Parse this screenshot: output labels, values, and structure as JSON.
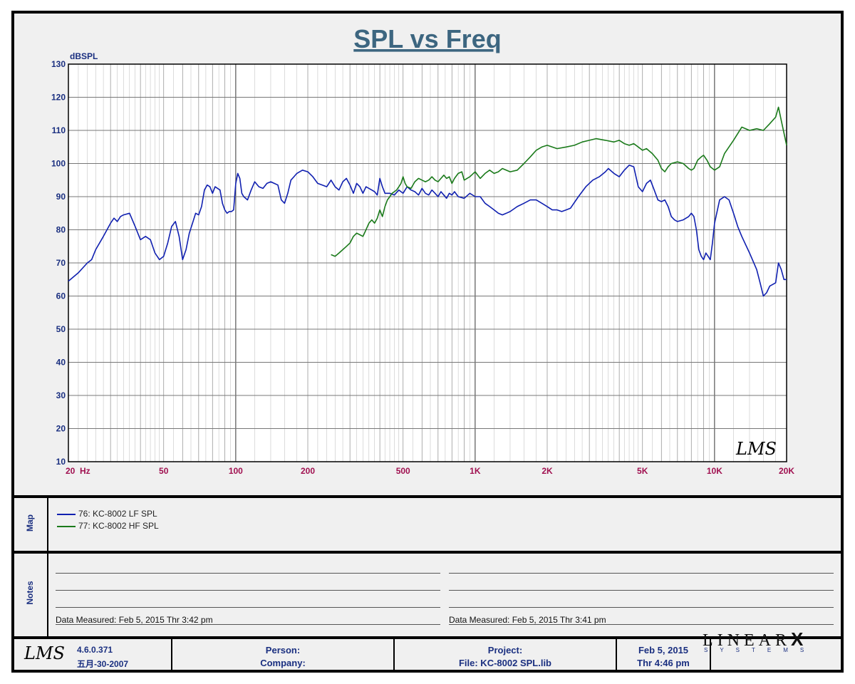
{
  "chart_data": {
    "type": "line",
    "title": "SPL vs Freq",
    "ylabel": "dBSPL",
    "xscale": "log",
    "xlim": [
      20,
      20000
    ],
    "ylim": [
      10,
      130
    ],
    "yticks": [
      10,
      20,
      30,
      40,
      50,
      60,
      70,
      80,
      90,
      100,
      110,
      120,
      130
    ],
    "xtick_labels": [
      {
        "x": 20,
        "label": "20  Hz"
      },
      {
        "x": 50,
        "label": "50"
      },
      {
        "x": 100,
        "label": "100"
      },
      {
        "x": 200,
        "label": "200"
      },
      {
        "x": 500,
        "label": "500"
      },
      {
        "x": 1000,
        "label": "1K"
      },
      {
        "x": 2000,
        "label": "2K"
      },
      {
        "x": 5000,
        "label": "5K"
      },
      {
        "x": 10000,
        "label": "10K"
      },
      {
        "x": 20000,
        "label": "20K"
      }
    ],
    "grid": true,
    "watermark": "LMS",
    "series": [
      {
        "name": "76: KC-8002  LF  SPL",
        "color": "#1020b0",
        "points": [
          [
            20,
            64.5
          ],
          [
            22,
            67
          ],
          [
            24,
            70
          ],
          [
            25,
            71
          ],
          [
            26,
            74
          ],
          [
            28,
            78
          ],
          [
            30,
            82
          ],
          [
            31,
            83.5
          ],
          [
            32,
            82.5
          ],
          [
            33,
            84
          ],
          [
            34,
            84.5
          ],
          [
            36,
            85
          ],
          [
            38,
            81
          ],
          [
            40,
            77
          ],
          [
            42,
            78
          ],
          [
            44,
            77
          ],
          [
            46,
            73
          ],
          [
            48,
            71
          ],
          [
            50,
            72
          ],
          [
            52,
            76
          ],
          [
            54,
            81
          ],
          [
            56,
            82.5
          ],
          [
            58,
            78
          ],
          [
            60,
            71
          ],
          [
            62,
            74
          ],
          [
            64,
            79
          ],
          [
            66,
            82
          ],
          [
            68,
            85
          ],
          [
            70,
            84.5
          ],
          [
            72,
            87
          ],
          [
            74,
            92
          ],
          [
            76,
            93.5
          ],
          [
            78,
            93
          ],
          [
            80,
            91
          ],
          [
            82,
            93
          ],
          [
            84,
            92.5
          ],
          [
            86,
            92
          ],
          [
            88,
            88
          ],
          [
            90,
            86
          ],
          [
            92,
            85
          ],
          [
            94,
            85.5
          ],
          [
            96,
            85.5
          ],
          [
            98,
            86
          ],
          [
            100,
            94
          ],
          [
            102,
            97
          ],
          [
            104,
            95.5
          ],
          [
            106,
            91
          ],
          [
            108,
            90
          ],
          [
            112,
            89
          ],
          [
            116,
            92
          ],
          [
            120,
            94.5
          ],
          [
            125,
            93
          ],
          [
            130,
            92.5
          ],
          [
            135,
            94
          ],
          [
            140,
            94.5
          ],
          [
            150,
            93.5
          ],
          [
            155,
            89
          ],
          [
            160,
            88
          ],
          [
            165,
            91
          ],
          [
            170,
            95
          ],
          [
            175,
            96
          ],
          [
            180,
            97
          ],
          [
            190,
            98
          ],
          [
            200,
            97.5
          ],
          [
            210,
            96
          ],
          [
            220,
            94
          ],
          [
            230,
            93.5
          ],
          [
            240,
            93
          ],
          [
            250,
            95
          ],
          [
            260,
            93
          ],
          [
            270,
            92
          ],
          [
            280,
            94.5
          ],
          [
            290,
            95.5
          ],
          [
            300,
            93.5
          ],
          [
            310,
            91
          ],
          [
            320,
            94
          ],
          [
            330,
            93
          ],
          [
            340,
            91
          ],
          [
            350,
            93
          ],
          [
            360,
            92.5
          ],
          [
            370,
            92
          ],
          [
            380,
            91.5
          ],
          [
            390,
            90.5
          ],
          [
            400,
            95.5
          ],
          [
            410,
            93
          ],
          [
            420,
            91
          ],
          [
            440,
            91
          ],
          [
            460,
            90.5
          ],
          [
            480,
            92
          ],
          [
            500,
            91
          ],
          [
            520,
            93
          ],
          [
            540,
            92
          ],
          [
            560,
            91.5
          ],
          [
            580,
            90.5
          ],
          [
            600,
            92.5
          ],
          [
            620,
            91
          ],
          [
            640,
            90.5
          ],
          [
            660,
            92
          ],
          [
            680,
            91
          ],
          [
            700,
            90
          ],
          [
            720,
            91.5
          ],
          [
            740,
            90.5
          ],
          [
            760,
            89.5
          ],
          [
            780,
            91
          ],
          [
            800,
            90.5
          ],
          [
            820,
            91.5
          ],
          [
            850,
            90
          ],
          [
            900,
            89.5
          ],
          [
            950,
            91
          ],
          [
            1000,
            90
          ],
          [
            1050,
            90
          ],
          [
            1100,
            88
          ],
          [
            1150,
            87
          ],
          [
            1200,
            86
          ],
          [
            1250,
            85
          ],
          [
            1300,
            84.5
          ],
          [
            1350,
            85
          ],
          [
            1400,
            85.5
          ],
          [
            1500,
            87
          ],
          [
            1600,
            88
          ],
          [
            1700,
            89
          ],
          [
            1800,
            89
          ],
          [
            1900,
            88
          ],
          [
            2000,
            87
          ],
          [
            2100,
            86
          ],
          [
            2200,
            86
          ],
          [
            2300,
            85.5
          ],
          [
            2400,
            86
          ],
          [
            2500,
            86.5
          ],
          [
            2700,
            90
          ],
          [
            2900,
            93
          ],
          [
            3100,
            95
          ],
          [
            3300,
            96
          ],
          [
            3500,
            97.5
          ],
          [
            3600,
            98.5
          ],
          [
            3800,
            97
          ],
          [
            4000,
            96
          ],
          [
            4200,
            98
          ],
          [
            4400,
            99.5
          ],
          [
            4600,
            99
          ],
          [
            4800,
            93
          ],
          [
            5000,
            91.5
          ],
          [
            5200,
            94
          ],
          [
            5400,
            95
          ],
          [
            5600,
            92
          ],
          [
            5800,
            89
          ],
          [
            6000,
            88.5
          ],
          [
            6200,
            89
          ],
          [
            6400,
            87
          ],
          [
            6600,
            84
          ],
          [
            6800,
            83
          ],
          [
            7000,
            82.5
          ],
          [
            7400,
            83
          ],
          [
            7800,
            84
          ],
          [
            8000,
            85
          ],
          [
            8200,
            84
          ],
          [
            8400,
            80
          ],
          [
            8600,
            74
          ],
          [
            8800,
            72
          ],
          [
            9000,
            71
          ],
          [
            9200,
            73
          ],
          [
            9400,
            72
          ],
          [
            9600,
            71
          ],
          [
            9800,
            76
          ],
          [
            10000,
            82
          ],
          [
            10500,
            89
          ],
          [
            11000,
            90
          ],
          [
            11500,
            89
          ],
          [
            12000,
            85
          ],
          [
            12500,
            81
          ],
          [
            13000,
            78
          ],
          [
            14000,
            73
          ],
          [
            15000,
            68
          ],
          [
            15500,
            64
          ],
          [
            16000,
            60
          ],
          [
            16500,
            61
          ],
          [
            17000,
            63
          ],
          [
            18000,
            64
          ],
          [
            18500,
            70
          ],
          [
            19000,
            68
          ],
          [
            19500,
            65
          ],
          [
            20000,
            65
          ]
        ]
      },
      {
        "name": "77: KC-8002  HF  SPL",
        "color": "#1a7a1a",
        "points": [
          [
            250,
            72.5
          ],
          [
            260,
            72
          ],
          [
            270,
            73
          ],
          [
            280,
            74
          ],
          [
            290,
            75
          ],
          [
            300,
            76
          ],
          [
            310,
            78
          ],
          [
            320,
            79
          ],
          [
            330,
            78.5
          ],
          [
            340,
            78
          ],
          [
            350,
            80
          ],
          [
            360,
            82
          ],
          [
            370,
            83
          ],
          [
            380,
            82
          ],
          [
            390,
            83.5
          ],
          [
            400,
            86
          ],
          [
            410,
            84
          ],
          [
            420,
            87
          ],
          [
            430,
            89
          ],
          [
            440,
            90
          ],
          [
            450,
            91
          ],
          [
            460,
            91.5
          ],
          [
            470,
            92
          ],
          [
            480,
            93
          ],
          [
            490,
            94
          ],
          [
            500,
            96
          ],
          [
            510,
            94
          ],
          [
            520,
            93
          ],
          [
            540,
            92.5
          ],
          [
            560,
            94.5
          ],
          [
            580,
            95.5
          ],
          [
            600,
            95
          ],
          [
            620,
            94.5
          ],
          [
            640,
            95
          ],
          [
            660,
            96
          ],
          [
            680,
            95
          ],
          [
            700,
            94.5
          ],
          [
            720,
            95.5
          ],
          [
            740,
            96.5
          ],
          [
            760,
            95.5
          ],
          [
            780,
            96
          ],
          [
            800,
            94
          ],
          [
            820,
            95.5
          ],
          [
            850,
            97
          ],
          [
            880,
            97.5
          ],
          [
            900,
            95
          ],
          [
            950,
            96
          ],
          [
            1000,
            97.5
          ],
          [
            1050,
            95.5
          ],
          [
            1100,
            97
          ],
          [
            1150,
            98
          ],
          [
            1200,
            97
          ],
          [
            1250,
            97.5
          ],
          [
            1300,
            98.5
          ],
          [
            1400,
            97.5
          ],
          [
            1500,
            98
          ],
          [
            1600,
            100
          ],
          [
            1700,
            102
          ],
          [
            1800,
            104
          ],
          [
            1900,
            105
          ],
          [
            2000,
            105.5
          ],
          [
            2200,
            104.5
          ],
          [
            2400,
            105
          ],
          [
            2600,
            105.5
          ],
          [
            2800,
            106.5
          ],
          [
            3000,
            107
          ],
          [
            3200,
            107.5
          ],
          [
            3500,
            107
          ],
          [
            3800,
            106.5
          ],
          [
            4000,
            107
          ],
          [
            4200,
            106
          ],
          [
            4400,
            105.5
          ],
          [
            4600,
            106
          ],
          [
            4800,
            105
          ],
          [
            5000,
            104
          ],
          [
            5200,
            104.5
          ],
          [
            5500,
            103
          ],
          [
            5800,
            101
          ],
          [
            6000,
            98.5
          ],
          [
            6200,
            97.5
          ],
          [
            6400,
            99
          ],
          [
            6600,
            100
          ],
          [
            7000,
            100.5
          ],
          [
            7400,
            100
          ],
          [
            7800,
            98.5
          ],
          [
            8000,
            98
          ],
          [
            8200,
            98.5
          ],
          [
            8500,
            101
          ],
          [
            8800,
            102
          ],
          [
            9000,
            102.5
          ],
          [
            9300,
            101
          ],
          [
            9600,
            99
          ],
          [
            10000,
            98
          ],
          [
            10500,
            99
          ],
          [
            11000,
            103
          ],
          [
            12000,
            107
          ],
          [
            13000,
            111
          ],
          [
            14000,
            110
          ],
          [
            15000,
            110.5
          ],
          [
            16000,
            110
          ],
          [
            17000,
            112
          ],
          [
            18000,
            114
          ],
          [
            18500,
            117
          ],
          [
            19000,
            113
          ],
          [
            20000,
            105.5
          ]
        ]
      }
    ]
  },
  "legend": {
    "title": "Map",
    "items": [
      {
        "label": "76: KC-8002  LF  SPL",
        "color": "#1020b0"
      },
      {
        "label": "77: KC-8002  HF  SPL",
        "color": "#1a7a1a"
      }
    ]
  },
  "notes": {
    "title": "Notes",
    "left_measured": "Data Measured: Feb  5, 2015  Thr  3:42 pm",
    "right_measured": "Data Measured: Feb  5, 2015  Thr  3:41 pm"
  },
  "footer": {
    "logo": "LMS",
    "version": "4.6.0.371",
    "build_date": "五月-30-2007",
    "person_label": "Person:",
    "company_label": "Company:",
    "project_label": "Project:",
    "file_label": "File: KC-8002 SPL.lib",
    "date": "Feb  5, 2015",
    "time": "Thr  4:46 pm",
    "brand": "LINEAR",
    "brand_mark": "X",
    "brand_sub": "SYSTEMS"
  }
}
